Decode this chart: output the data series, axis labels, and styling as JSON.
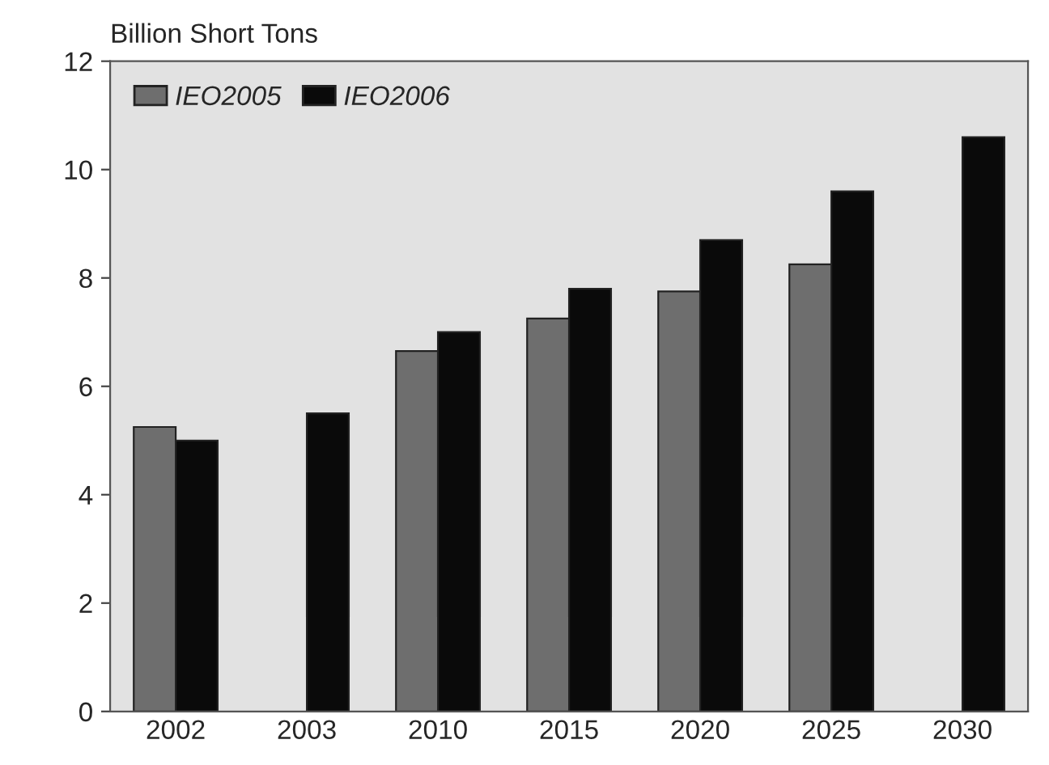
{
  "chart_data": {
    "type": "bar",
    "ylabel": "Billion Short Tons",
    "categories": [
      "2002",
      "2003",
      "2010",
      "2015",
      "2020",
      "2025",
      "2030"
    ],
    "series": [
      {
        "name": "IEO2005",
        "color": "#6e6e6e",
        "values": [
          5.25,
          null,
          6.65,
          7.25,
          7.75,
          8.25,
          null
        ]
      },
      {
        "name": "IEO2006",
        "color": "#0a0a0a",
        "values": [
          5.0,
          5.5,
          7.0,
          7.8,
          8.7,
          9.6,
          10.6
        ]
      }
    ],
    "ylim": [
      0,
      12
    ],
    "yticks": [
      0,
      2,
      4,
      6,
      8,
      10,
      12
    ],
    "legend": "top left",
    "grid": false
  }
}
